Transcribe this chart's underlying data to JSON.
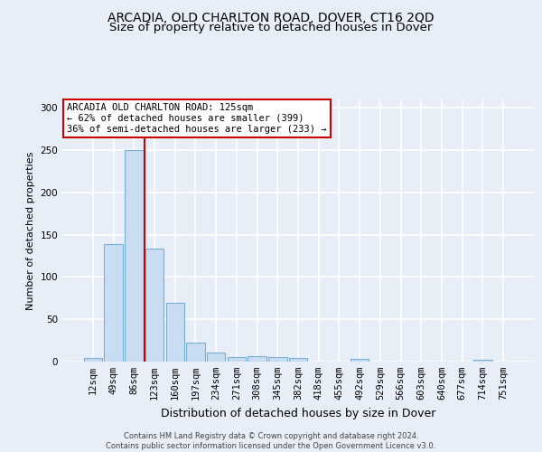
{
  "title1": "ARCADIA, OLD CHARLTON ROAD, DOVER, CT16 2QD",
  "title2": "Size of property relative to detached houses in Dover",
  "xlabel": "Distribution of detached houses by size in Dover",
  "ylabel": "Number of detached properties",
  "categories": [
    "12sqm",
    "49sqm",
    "86sqm",
    "123sqm",
    "160sqm",
    "197sqm",
    "234sqm",
    "271sqm",
    "308sqm",
    "345sqm",
    "382sqm",
    "418sqm",
    "455sqm",
    "492sqm",
    "529sqm",
    "566sqm",
    "603sqm",
    "640sqm",
    "677sqm",
    "714sqm",
    "751sqm"
  ],
  "values": [
    4,
    139,
    250,
    134,
    69,
    22,
    11,
    5,
    6,
    5,
    4,
    0,
    0,
    3,
    0,
    0,
    0,
    0,
    0,
    2,
    0
  ],
  "bar_color": "#c9ddf2",
  "bar_edge_color": "#7aafd4",
  "red_line_x": 2.5,
  "annotation_text": "ARCADIA OLD CHARLTON ROAD: 125sqm\n← 62% of detached houses are smaller (399)\n36% of semi-detached houses are larger (233) →",
  "annotation_box_facecolor": "#ffffff",
  "annotation_border_color": "#cc0000",
  "ylim": [
    0,
    310
  ],
  "yticks": [
    0,
    50,
    100,
    150,
    200,
    250,
    300
  ],
  "footer": "Contains HM Land Registry data © Crown copyright and database right 2024.\nContains public sector information licensed under the Open Government Licence v3.0.",
  "bg_color": "#e8eef8",
  "plot_bg_color": "#e8eef8",
  "grid_color": "#ffffff",
  "title1_fontsize": 10,
  "title2_fontsize": 9.5,
  "xlabel_fontsize": 9,
  "ylabel_fontsize": 8,
  "tick_fontsize": 7.5,
  "footer_fontsize": 6,
  "ann_fontsize": 7.5
}
